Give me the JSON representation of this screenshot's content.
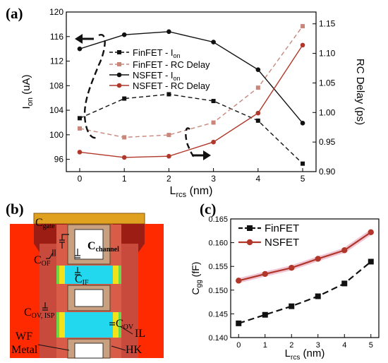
{
  "panels": {
    "a": {
      "label": "(a)"
    },
    "b": {
      "label": "(b)"
    },
    "c": {
      "label": "(c)"
    }
  },
  "colors": {
    "black": "#111111",
    "red": "#b0372a",
    "pink": "#c9867b",
    "device_red": "#ff2a00",
    "dark_red": "#8b1a12",
    "gold": "#e0a020",
    "tan": "#caa37e",
    "cyan": "#22d8ee"
  },
  "chart_data": [
    {
      "type": "line",
      "panel": "(a)",
      "xlabel": "L",
      "xlabel_sub": "rcs",
      "xlabel_unit": " (nm)",
      "ylabel_left": "I",
      "ylabel_left_sub": "on",
      "ylabel_left_unit": " (uA)",
      "ylabel_right": "RC Delay (ps)",
      "x": [
        0,
        1,
        2,
        3,
        4,
        5
      ],
      "xlim": [
        -0.3,
        5.3
      ],
      "ylim_left": [
        94,
        120
      ],
      "ylim_right": [
        0.9,
        1.17
      ],
      "yticks_left": [
        96,
        100,
        104,
        108,
        112,
        116,
        120
      ],
      "yticks_right": [
        0.9,
        0.95,
        1.0,
        1.05,
        1.1,
        1.15
      ],
      "series": [
        {
          "name": "FinFET - I",
          "name_sub": "on",
          "axis": "left",
          "style": "black-dash-square",
          "values": [
            102.7,
            105.9,
            106.6,
            105.5,
            102.3,
            95.3
          ]
        },
        {
          "name": "FinFET - RC Delay",
          "axis": "right",
          "style": "pink-dash-square",
          "values": [
            0.973,
            0.958,
            0.962,
            0.983,
            1.042,
            1.146
          ]
        },
        {
          "name": "NSFET - I",
          "name_sub": "on",
          "axis": "left",
          "style": "black-solid-circle",
          "values": [
            114.0,
            116.3,
            116.8,
            115.1,
            110.6,
            101.9
          ]
        },
        {
          "name": "NSFET - RC Delay",
          "axis": "right",
          "style": "red-solid-circle",
          "values": [
            0.933,
            0.924,
            0.926,
            0.95,
            0.999,
            1.114
          ]
        }
      ],
      "legend_position": "center"
    },
    {
      "type": "line",
      "panel": "(c)",
      "xlabel": "L",
      "xlabel_sub": "rcs",
      "xlabel_unit": " (nm)",
      "ylabel": "C",
      "ylabel_sub": "gg",
      "ylabel_unit": " (fF)",
      "x": [
        0,
        1,
        2,
        3,
        4,
        5
      ],
      "xlim": [
        -0.3,
        5.3
      ],
      "ylim": [
        0.14,
        0.165
      ],
      "yticks": [
        0.14,
        0.145,
        0.15,
        0.155,
        0.16,
        0.165
      ],
      "series": [
        {
          "name": "FinFET",
          "style": "black-dash-square",
          "values": [
            0.143,
            0.1448,
            0.1466,
            0.1487,
            0.1514,
            0.156
          ]
        },
        {
          "name": "NSFET",
          "style": "red-solid-circle",
          "values": [
            0.152,
            0.1534,
            0.1547,
            0.1566,
            0.1584,
            0.1622
          ]
        }
      ],
      "legend_position": "top-left"
    }
  ],
  "diagram_b": {
    "labels": {
      "c_gate": "C",
      "c_gate_sub": "gate",
      "c_channel": "C",
      "c_channel_sub": "channel",
      "c_of": "C",
      "c_of_sub": "OF",
      "c_if": "C",
      "c_if_sub": "IF",
      "c_ov_isp": "C",
      "c_ov_isp_sub": "OV, ISP",
      "c_ov": "C",
      "c_ov_sub": "OV",
      "il": "IL",
      "wf_metal": "WF",
      "wf_metal_2": "Metal",
      "hk": "HK"
    }
  }
}
